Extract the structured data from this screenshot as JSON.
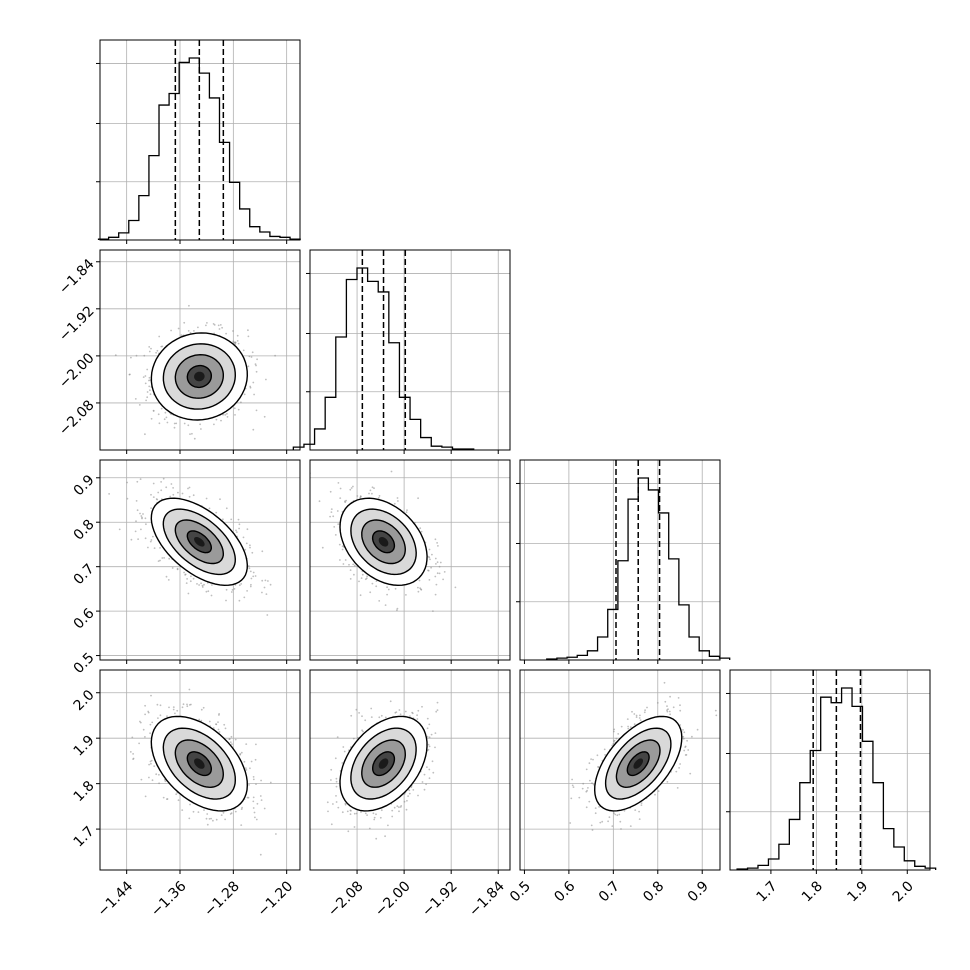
{
  "chart_data": {
    "type": "corner",
    "grid": true,
    "params": [
      {
        "id": "p0",
        "range": [
          -1.48,
          -1.18
        ],
        "ticks": [
          -1.44,
          -1.36,
          -1.28,
          -1.2
        ],
        "tick_labels": [
          "−1.44",
          "−1.36",
          "−1.28",
          "−1.20"
        ],
        "quantiles": [
          -1.367,
          -1.331,
          -1.295
        ],
        "hist_values": [
          1,
          3,
          8,
          22,
          50,
          95,
          152,
          165,
          200,
          205,
          188,
          160,
          110,
          65,
          35,
          15,
          9,
          4,
          3,
          1
        ]
      },
      {
        "id": "p1",
        "range": [
          -2.16,
          -1.82
        ],
        "ticks": [
          -2.08,
          -2.0,
          -1.92,
          -1.84
        ],
        "tick_labels": [
          "−2.08",
          "−2.00",
          "−1.92",
          "−1.84"
        ],
        "quantiles": [
          -2.071,
          -2.035,
          -1.998
        ],
        "hist_values": [
          3,
          6,
          22,
          55,
          118,
          178,
          190,
          176,
          165,
          112,
          55,
          32,
          13,
          4,
          3,
          1,
          1
        ]
      },
      {
        "id": "p2",
        "range": [
          0.49,
          0.94
        ],
        "ticks": [
          0.5,
          0.6,
          0.7,
          0.8,
          0.9
        ],
        "tick_labels": [
          "0.5",
          "0.6",
          "0.7",
          "0.8",
          "0.9"
        ],
        "quantiles": [
          0.706,
          0.756,
          0.804
        ],
        "hist_values": [
          1,
          2,
          3,
          5,
          10,
          25,
          55,
          108,
          175,
          198,
          185,
          160,
          110,
          60,
          25,
          10,
          4,
          2
        ]
      },
      {
        "id": "p3",
        "range": [
          1.61,
          2.05
        ],
        "ticks": [
          1.7,
          1.8,
          1.9,
          2.0
        ],
        "tick_labels": [
          "1.7",
          "1.8",
          "1.9",
          "2.0"
        ],
        "quantiles": [
          1.793,
          1.844,
          1.897
        ],
        "hist_values": [
          1,
          2,
          5,
          12,
          28,
          55,
          95,
          130,
          188,
          182,
          198,
          178,
          140,
          95,
          45,
          25,
          10,
          4,
          2
        ]
      }
    ],
    "pairs": [
      {
        "row": 1,
        "col": 0,
        "mean": [
          -1.331,
          -2.035
        ],
        "sd": [
          0.036,
          0.037
        ],
        "rho": 0.05
      },
      {
        "row": 2,
        "col": 0,
        "mean": [
          -1.331,
          0.756
        ],
        "sd": [
          0.036,
          0.049
        ],
        "rho": -0.55
      },
      {
        "row": 2,
        "col": 1,
        "mean": [
          -2.035,
          0.756
        ],
        "sd": [
          0.037,
          0.049
        ],
        "rho": -0.35
      },
      {
        "row": 3,
        "col": 0,
        "mean": [
          -1.331,
          1.844
        ],
        "sd": [
          0.036,
          0.052
        ],
        "rho": -0.45
      },
      {
        "row": 3,
        "col": 1,
        "mean": [
          -2.035,
          1.844
        ],
        "sd": [
          0.037,
          0.052
        ],
        "rho": 0.4
      },
      {
        "row": 3,
        "col": 2,
        "mean": [
          0.756,
          1.844
        ],
        "sd": [
          0.049,
          0.052
        ],
        "rho": 0.55
      }
    ],
    "contour_levels_sigma": [
      0.5,
      1.0,
      1.5,
      2.0
    ]
  }
}
